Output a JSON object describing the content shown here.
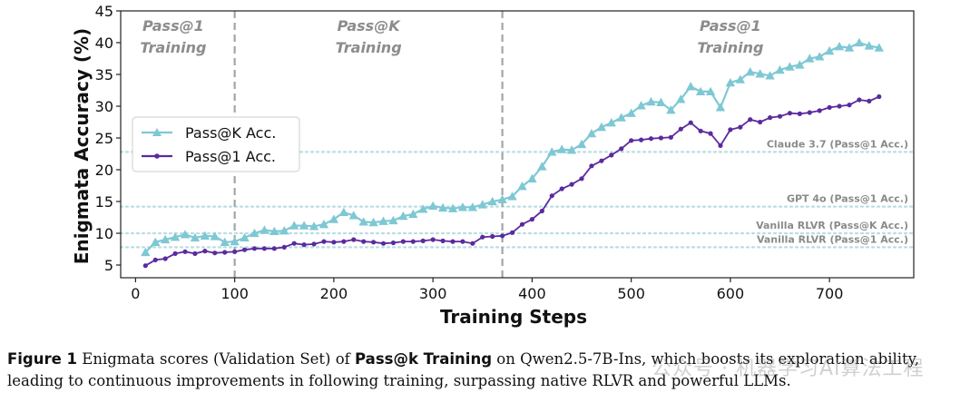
{
  "chart_data": {
    "type": "line",
    "xlabel": "Training Steps",
    "ylabel": "Enigmata Accuracy (%)",
    "xlim": [
      -15,
      785
    ],
    "ylim": [
      3,
      45
    ],
    "xticks": [
      0,
      100,
      200,
      300,
      400,
      500,
      600,
      700
    ],
    "yticks": [
      5,
      10,
      15,
      20,
      25,
      30,
      35,
      40,
      45
    ],
    "phase_lines": [
      100,
      370
    ],
    "phases": [
      {
        "line1": "Pass@1",
        "line2": "Training",
        "x": 38
      },
      {
        "line1": "Pass@K",
        "line2": "Training",
        "x": 235
      },
      {
        "line1": "Pass@1",
        "line2": "Training",
        "x": 600
      }
    ],
    "baselines": [
      {
        "label": "Claude 3.7 (Pass@1 Acc.)",
        "value": 22.8
      },
      {
        "label": "GPT 4o (Pass@1 Acc.)",
        "value": 14.2
      },
      {
        "label": "Vanilla RLVR (Pass@K Acc.)",
        "value": 10.0
      },
      {
        "label": "Vanilla RLVR (Pass@1 Acc.)",
        "value": 7.8
      }
    ],
    "legend_position": "center-left",
    "series": [
      {
        "name": "Pass@K Acc.",
        "color": "#7ec8d4",
        "marker": "triangle",
        "x": [
          10,
          20,
          30,
          40,
          50,
          60,
          70,
          80,
          90,
          100,
          110,
          120,
          130,
          140,
          150,
          160,
          170,
          180,
          190,
          200,
          210,
          220,
          230,
          240,
          250,
          260,
          270,
          280,
          290,
          300,
          310,
          320,
          330,
          340,
          350,
          360,
          370,
          380,
          390,
          400,
          410,
          420,
          430,
          440,
          450,
          460,
          470,
          480,
          490,
          500,
          510,
          520,
          530,
          540,
          550,
          560,
          570,
          580,
          590,
          600,
          610,
          620,
          630,
          640,
          650,
          660,
          670,
          680,
          690,
          700,
          710,
          720,
          730,
          740,
          750
        ],
        "values": [
          7.0,
          8.6,
          9.0,
          9.4,
          9.8,
          9.3,
          9.6,
          9.5,
          8.6,
          8.7,
          9.3,
          10.0,
          10.5,
          10.3,
          10.4,
          11.2,
          11.2,
          11.1,
          11.4,
          12.2,
          13.3,
          12.8,
          11.8,
          11.7,
          11.9,
          12.0,
          12.7,
          13.0,
          13.8,
          14.3,
          14.0,
          13.9,
          14.1,
          14.1,
          14.5,
          15.0,
          15.3,
          15.8,
          17.4,
          18.6,
          20.5,
          22.8,
          23.2,
          23.1,
          24.0,
          25.7,
          26.7,
          27.4,
          28.2,
          28.9,
          30.1,
          30.7,
          30.6,
          29.4,
          31.1,
          33.1,
          32.3,
          32.3,
          29.8,
          33.7,
          34.2,
          35.4,
          35.1,
          34.8,
          35.7,
          36.2,
          36.5,
          37.5,
          37.8,
          38.7,
          39.4,
          39.2,
          40.0,
          39.5,
          39.2
        ]
      },
      {
        "name": "Pass@1 Acc.",
        "color": "#5b2a9e",
        "marker": "circle",
        "x": [
          10,
          20,
          30,
          40,
          50,
          60,
          70,
          80,
          90,
          100,
          110,
          120,
          130,
          140,
          150,
          160,
          170,
          180,
          190,
          200,
          210,
          220,
          230,
          240,
          250,
          260,
          270,
          280,
          290,
          300,
          310,
          320,
          330,
          340,
          350,
          360,
          370,
          380,
          390,
          400,
          410,
          420,
          430,
          440,
          450,
          460,
          470,
          480,
          490,
          500,
          510,
          520,
          530,
          540,
          550,
          560,
          570,
          580,
          590,
          600,
          610,
          620,
          630,
          640,
          650,
          660,
          670,
          680,
          690,
          700,
          710,
          720,
          730,
          740,
          750
        ],
        "values": [
          4.9,
          5.8,
          6.0,
          6.8,
          7.1,
          6.8,
          7.2,
          6.9,
          7.0,
          7.1,
          7.4,
          7.6,
          7.6,
          7.6,
          7.8,
          8.4,
          8.2,
          8.3,
          8.7,
          8.6,
          8.7,
          9.0,
          8.7,
          8.6,
          8.4,
          8.5,
          8.7,
          8.7,
          8.8,
          9.0,
          8.8,
          8.7,
          8.7,
          8.4,
          9.4,
          9.5,
          9.6,
          10.1,
          11.4,
          12.2,
          13.5,
          15.9,
          17.0,
          17.7,
          18.6,
          20.6,
          21.4,
          22.3,
          23.3,
          24.6,
          24.7,
          24.9,
          25.0,
          25.1,
          26.4,
          27.4,
          26.1,
          25.7,
          23.8,
          26.3,
          26.7,
          27.9,
          27.5,
          28.2,
          28.4,
          28.9,
          28.8,
          29.0,
          29.3,
          29.8,
          30.0,
          30.2,
          31.0,
          30.8,
          31.5
        ]
      }
    ]
  },
  "caption": {
    "label": "Figure 1",
    "text_before": "Enigmata scores (Validation Set) of",
    "bold": "Pass@k Training",
    "text_after": "on Qwen2.5-7B-Ins, which boosts its exploration ability, leading to continuous improvements in following training, surpassing native RLVR and powerful LLMs."
  },
  "watermark": "公众号 · 机器学习AI算法工程"
}
